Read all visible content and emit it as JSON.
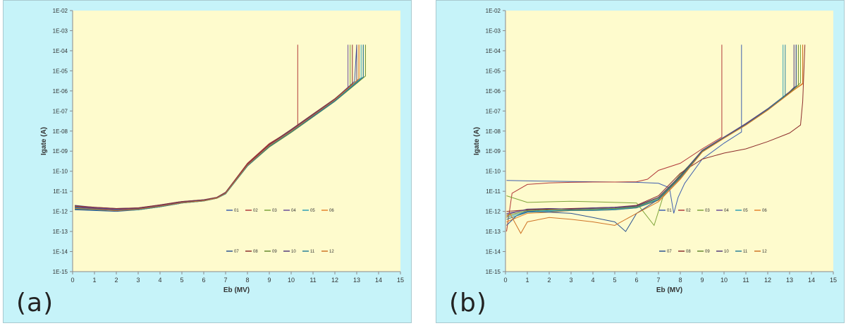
{
  "colors": {
    "plot_bg": "#fefbcd",
    "panel_bg": "#c6f3f9",
    "series": [
      "#3f5fae",
      "#b1393a",
      "#7ea53a",
      "#6a4f98",
      "#2f9fb7",
      "#e6852b",
      "#2e5591",
      "#8d2e2d",
      "#678a2f",
      "#543d7b",
      "#2a8099",
      "#cf7426"
    ]
  },
  "chart_data": [
    {
      "type": "line",
      "panel_label": "(a)",
      "title": "",
      "xlabel": "Eb (MV)",
      "ylabel": "Igate (A)",
      "xlim": [
        0,
        15
      ],
      "ylim": [
        1e-15,
        0.01
      ],
      "y_scale": "log",
      "x_ticks": [
        "0",
        "1",
        "2",
        "3",
        "4",
        "5",
        "6",
        "7",
        "8",
        "9",
        "10",
        "11",
        "12",
        "13",
        "14",
        "15"
      ],
      "y_ticks": [
        "1E-15",
        "1E-14",
        "1E-13",
        "1E-12",
        "1E-11",
        "1E-10",
        "1E-09",
        "1E-08",
        "1E-07",
        "1E-06",
        "1E-05",
        "1E-04",
        "1E-03",
        "1E-02"
      ],
      "legend": {
        "placement": "lower-right",
        "entries": [
          "01",
          "02",
          "03",
          "04",
          "05",
          "06",
          "07",
          "08",
          "09",
          "10",
          "11",
          "12"
        ]
      },
      "series": [
        {
          "name": "01",
          "x": [
            0.1,
            1,
            2,
            3,
            4,
            5,
            6,
            6.6,
            7,
            8,
            9,
            10,
            11,
            12,
            12.9,
            13.0,
            13.0
          ],
          "y": [
            2e-12,
            1.6e-12,
            1.4e-12,
            1.5e-12,
            2.1e-12,
            3.1e-12,
            3.8e-12,
            5e-12,
            9e-12,
            2.3e-10,
            2.2e-09,
            1.2e-08,
            7e-08,
            4e-07,
            3e-06,
            0.0002,
            0.0002
          ]
        },
        {
          "name": "02",
          "x": [
            0.1,
            1,
            2,
            3,
            4,
            5,
            6,
            6.6,
            7,
            8,
            9,
            10,
            10.3,
            10.3
          ],
          "y": [
            1.8e-12,
            1.5e-12,
            1.3e-12,
            1.5e-12,
            2e-12,
            3e-12,
            3.7e-12,
            5e-12,
            9e-12,
            2.5e-10,
            2.4e-09,
            1.1e-08,
            1.5e-08,
            0.0002
          ]
        },
        {
          "name": "03",
          "x": [
            0.1,
            1,
            2,
            3,
            4,
            5,
            6,
            6.6,
            7,
            8,
            9,
            10,
            11,
            12,
            12.7,
            12.7
          ],
          "y": [
            1.7e-12,
            1.4e-12,
            1.2e-12,
            1.4e-12,
            1.9e-12,
            2.9e-12,
            3.5e-12,
            4.8e-12,
            8.5e-12,
            2.1e-10,
            2e-09,
            1.1e-08,
            6.5e-08,
            3.8e-07,
            1.8e-06,
            0.0002
          ]
        },
        {
          "name": "04",
          "x": [
            0.1,
            1,
            2,
            3,
            4,
            5,
            6,
            6.6,
            7,
            8,
            9,
            10,
            11,
            12,
            12.6,
            12.6
          ],
          "y": [
            1.6e-12,
            1.5e-12,
            1.3e-12,
            1.4e-12,
            2e-12,
            3e-12,
            3.6e-12,
            4.9e-12,
            9e-12,
            2.2e-10,
            2.1e-09,
            1.2e-08,
            7e-08,
            4e-07,
            1.5e-06,
            0.0002
          ]
        },
        {
          "name": "05",
          "x": [
            0.1,
            1,
            2,
            3,
            4,
            5,
            6,
            6.6,
            7,
            8,
            9,
            10,
            11,
            12,
            13.2,
            13.2
          ],
          "y": [
            1.5e-12,
            1.3e-12,
            1.2e-12,
            1.3e-12,
            1.8e-12,
            2.8e-12,
            3.5e-12,
            4.7e-12,
            8e-12,
            2e-10,
            1.8e-09,
            1e-08,
            6e-08,
            3.5e-07,
            4.5e-06,
            0.0002
          ]
        },
        {
          "name": "06",
          "x": [
            0.1,
            1,
            2,
            3,
            4,
            5,
            6,
            6.6,
            7,
            8,
            9,
            10,
            11,
            12,
            13.1,
            13.1
          ],
          "y": [
            1.3e-12,
            1.2e-12,
            1.1e-12,
            1.3e-12,
            1.8e-12,
            2.7e-12,
            3.4e-12,
            4.6e-12,
            8e-12,
            2e-10,
            1.9e-09,
            1e-08,
            6e-08,
            3.6e-07,
            4e-06,
            0.0002
          ]
        },
        {
          "name": "07",
          "x": [
            0.1,
            1,
            2,
            3,
            4,
            5,
            6,
            6.6,
            7,
            8,
            9,
            10,
            11,
            12,
            13.3,
            13.3
          ],
          "y": [
            1.2e-12,
            1.1e-12,
            1e-12,
            1.2e-12,
            1.7e-12,
            2.6e-12,
            3.3e-12,
            4.5e-12,
            7.5e-12,
            1.9e-10,
            1.7e-09,
            9e-09,
            5.5e-08,
            3.2e-07,
            5e-06,
            0.0002
          ]
        },
        {
          "name": "08",
          "x": [
            0.1,
            1,
            2,
            3,
            4,
            5,
            6,
            6.6,
            7,
            8,
            9,
            10,
            11,
            12,
            12.8,
            12.8
          ],
          "y": [
            1.9e-12,
            1.6e-12,
            1.4e-12,
            1.5e-12,
            2.1e-12,
            3.1e-12,
            3.8e-12,
            5e-12,
            9e-12,
            2.3e-10,
            2.2e-09,
            1.2e-08,
            7e-08,
            4.1e-07,
            2.2e-06,
            0.0002
          ]
        },
        {
          "name": "09",
          "x": [
            0.1,
            1,
            2,
            3,
            4,
            5,
            6,
            6.6,
            7,
            8,
            9,
            10,
            11,
            12,
            13.4,
            13.4
          ],
          "y": [
            1.4e-12,
            1.2e-12,
            1.1e-12,
            1.2e-12,
            1.7e-12,
            2.6e-12,
            3.3e-12,
            4.5e-12,
            7.5e-12,
            1.8e-10,
            1.6e-09,
            8.5e-09,
            5e-08,
            3e-07,
            5.5e-06,
            0.0002
          ]
        },
        {
          "name": "10",
          "x": [
            0.1,
            1,
            2,
            3,
            4,
            5,
            6,
            6.6,
            7,
            8,
            9,
            10,
            11,
            12,
            13.0,
            13.0
          ],
          "y": [
            1.6e-12,
            1.4e-12,
            1.2e-12,
            1.4e-12,
            1.9e-12,
            2.9e-12,
            3.6e-12,
            4.8e-12,
            8.5e-12,
            2.1e-10,
            2e-09,
            1.1e-08,
            6.5e-08,
            3.8e-07,
            3.2e-06,
            0.0002
          ]
        },
        {
          "name": "11",
          "x": [
            0.1,
            1,
            2,
            3,
            4,
            5,
            6,
            6.6,
            7,
            8,
            9,
            10,
            11,
            12,
            13.3,
            13.3
          ],
          "y": [
            1.3e-12,
            1.2e-12,
            1.1e-12,
            1.2e-12,
            1.7e-12,
            2.6e-12,
            3.3e-12,
            4.5e-12,
            7.5e-12,
            1.8e-10,
            1.7e-09,
            9e-09,
            5.2e-08,
            3.1e-07,
            5e-06,
            0.0002
          ]
        },
        {
          "name": "12",
          "x": [
            0.1,
            1,
            2,
            3,
            4,
            5,
            6,
            6.6,
            7,
            8,
            9,
            10,
            11,
            12,
            13.1,
            13.1
          ],
          "y": [
            1.4e-12,
            1.3e-12,
            1.1e-12,
            1.3e-12,
            1.8e-12,
            2.7e-12,
            3.4e-12,
            4.6e-12,
            8e-12,
            2e-10,
            1.9e-09,
            1e-08,
            6e-08,
            3.6e-07,
            4e-06,
            0.0002
          ]
        }
      ]
    },
    {
      "type": "line",
      "panel_label": "(b)",
      "title": "",
      "xlabel": "Eb (MV)",
      "ylabel": "Igate (A)",
      "xlim": [
        0,
        15
      ],
      "ylim": [
        1e-15,
        0.01
      ],
      "y_scale": "log",
      "x_ticks": [
        "0",
        "1",
        "2",
        "3",
        "4",
        "5",
        "6",
        "7",
        "8",
        "9",
        "10",
        "11",
        "12",
        "13",
        "14",
        "15"
      ],
      "y_ticks": [
        "1E-15",
        "1E-14",
        "1E-13",
        "1E-12",
        "1E-11",
        "1E-10",
        "1E-09",
        "1E-08",
        "1E-07",
        "1E-06",
        "1E-05",
        "1E-04",
        "1E-03",
        "1E-02"
      ],
      "legend": {
        "placement": "lower-right",
        "entries": [
          "01",
          "02",
          "03",
          "04",
          "05",
          "06",
          "07",
          "08",
          "09",
          "10",
          "11",
          "12"
        ]
      },
      "series": [
        {
          "name": "01",
          "x": [
            0.05,
            1,
            2,
            3,
            4,
            5,
            6,
            7,
            7.5,
            7.7,
            7.9,
            8.2,
            9,
            10,
            10.8,
            10.8
          ],
          "y": [
            3.5e-11,
            3.3e-11,
            3.2e-11,
            3.1e-11,
            3e-11,
            2.9e-11,
            2.8e-11,
            2.5e-11,
            1.5e-11,
            8e-13,
            5e-12,
            2.5e-11,
            4e-10,
            2.5e-09,
            9e-09,
            0.0002
          ]
        },
        {
          "name": "02",
          "x": [
            0.05,
            0.3,
            1,
            2,
            3,
            4,
            5,
            6,
            6.5,
            7,
            8,
            9,
            9.9,
            9.9
          ],
          "y": [
            1e-13,
            8e-12,
            2.2e-11,
            2.6e-11,
            2.8e-11,
            2.9e-11,
            2.9e-11,
            3e-11,
            4e-11,
            1.1e-10,
            2.5e-10,
            1.3e-09,
            5e-09,
            0.0002
          ]
        },
        {
          "name": "03",
          "x": [
            0.05,
            1,
            2,
            3,
            4,
            5,
            6,
            6.8,
            7.2,
            7.5,
            8,
            9,
            10,
            11,
            12,
            13,
            13.5,
            13.5
          ],
          "y": [
            6e-12,
            2.8e-12,
            3e-12,
            3.2e-12,
            3e-12,
            2.8e-12,
            2.6e-12,
            2e-13,
            5e-12,
            1.5e-11,
            7e-11,
            9e-10,
            4.5e-09,
            2e-08,
            1.1e-07,
            8e-07,
            2.5e-06,
            0.0002
          ]
        },
        {
          "name": "04",
          "x": [
            0.05,
            1,
            2,
            3,
            4,
            5,
            6,
            7,
            8,
            9,
            10,
            11,
            12,
            13,
            13.3,
            13.3
          ],
          "y": [
            8e-13,
            1.2e-12,
            1.4e-12,
            1.3e-12,
            1.4e-12,
            1.5e-12,
            1.8e-12,
            5e-12,
            6e-11,
            1.1e-09,
            5e-09,
            2.4e-08,
            1.3e-07,
            9e-07,
            1.8e-06,
            0.0002
          ]
        },
        {
          "name": "05",
          "x": [
            0.05,
            1,
            2,
            3,
            4,
            5,
            6,
            7,
            8,
            9,
            10,
            11,
            12,
            12.7,
            12.7
          ],
          "y": [
            5e-13,
            1e-12,
            1.1e-12,
            1.2e-12,
            1.2e-12,
            1.3e-12,
            1.6e-12,
            4e-12,
            5e-11,
            1e-09,
            4.8e-09,
            2.2e-08,
            1.2e-07,
            5e-07,
            0.0002
          ]
        },
        {
          "name": "06",
          "x": [
            0.05,
            1,
            2,
            3,
            4,
            5,
            6,
            7,
            8,
            9,
            10,
            11,
            12,
            13,
            13.6,
            13.6
          ],
          "y": [
            3e-13,
            8e-13,
            9e-13,
            1.1e-12,
            1.1e-12,
            1.2e-12,
            1.5e-12,
            3.5e-12,
            4.5e-11,
            9e-10,
            4.5e-09,
            2e-08,
            1.1e-07,
            8e-07,
            2.2e-06,
            0.0002
          ]
        },
        {
          "name": "07",
          "x": [
            0.05,
            0.5,
            1,
            2,
            3,
            4,
            5,
            5.5,
            6,
            7,
            8,
            9,
            10,
            11,
            12,
            13,
            13.3,
            13.3
          ],
          "y": [
            2e-13,
            6e-13,
            1e-12,
            9e-13,
            8e-13,
            5e-13,
            3e-13,
            1e-13,
            8e-13,
            4e-12,
            5e-11,
            1e-09,
            4.6e-09,
            2.1e-08,
            1.2e-07,
            8.5e-07,
            1.7e-06,
            0.0002
          ]
        },
        {
          "name": "08",
          "x": [
            0.05,
            1,
            2,
            3,
            4,
            5,
            6,
            7,
            8,
            9,
            10,
            11,
            12,
            13,
            13.5,
            13.6,
            13.7
          ],
          "y": [
            1e-12,
            1.2e-12,
            1.3e-12,
            1.4e-12,
            1.5e-12,
            1.6e-12,
            2e-12,
            6e-12,
            8e-11,
            4e-10,
            8e-10,
            1.3e-09,
            3e-09,
            8e-09,
            2e-08,
            3e-07,
            0.0002
          ]
        },
        {
          "name": "09",
          "x": [
            0.05,
            1,
            2,
            3,
            4,
            5,
            6,
            7,
            8,
            9,
            10,
            11,
            12,
            13,
            13.4,
            13.4
          ],
          "y": [
            6e-13,
            1.1e-12,
            1.2e-12,
            1.2e-12,
            1.3e-12,
            1.4e-12,
            1.7e-12,
            4.5e-12,
            5.5e-11,
            1e-09,
            4.7e-09,
            2.1e-08,
            1.2e-07,
            8.5e-07,
            1.9e-06,
            0.0002
          ]
        },
        {
          "name": "10",
          "x": [
            0.05,
            1,
            2,
            3,
            4,
            5,
            6,
            7,
            8,
            9,
            10,
            11,
            12,
            13,
            13.2,
            13.2
          ],
          "y": [
            7e-13,
            1.3e-12,
            1.4e-12,
            1.3e-12,
            1.5e-12,
            1.6e-12,
            1.9e-12,
            5e-12,
            6e-11,
            1.1e-09,
            5e-09,
            2.3e-08,
            1.3e-07,
            9e-07,
            1.5e-06,
            0.0002
          ]
        },
        {
          "name": "11",
          "x": [
            0.05,
            1,
            2,
            3,
            4,
            5,
            6,
            7,
            8,
            9,
            10,
            11,
            12,
            12.8,
            12.8
          ],
          "y": [
            4e-13,
            9e-13,
            1e-12,
            1.1e-12,
            1.1e-12,
            1.2e-12,
            1.5e-12,
            3.8e-12,
            4.8e-11,
            9.5e-10,
            4.6e-09,
            2.1e-08,
            1.2e-07,
            6e-07,
            0.0002
          ]
        },
        {
          "name": "12",
          "x": [
            0.05,
            0.2,
            0.5,
            0.7,
            1,
            2,
            3,
            4,
            5,
            6,
            7,
            8,
            9,
            10,
            11,
            12,
            13,
            13.6,
            13.6
          ],
          "y": [
            5e-13,
            8e-13,
            2e-13,
            8e-14,
            3e-13,
            5e-13,
            4e-13,
            3e-13,
            2e-13,
            8e-13,
            3e-12,
            4e-11,
            9e-10,
            4.4e-09,
            2e-08,
            1.1e-07,
            7.5e-07,
            2.4e-06,
            0.0002
          ]
        }
      ]
    }
  ]
}
